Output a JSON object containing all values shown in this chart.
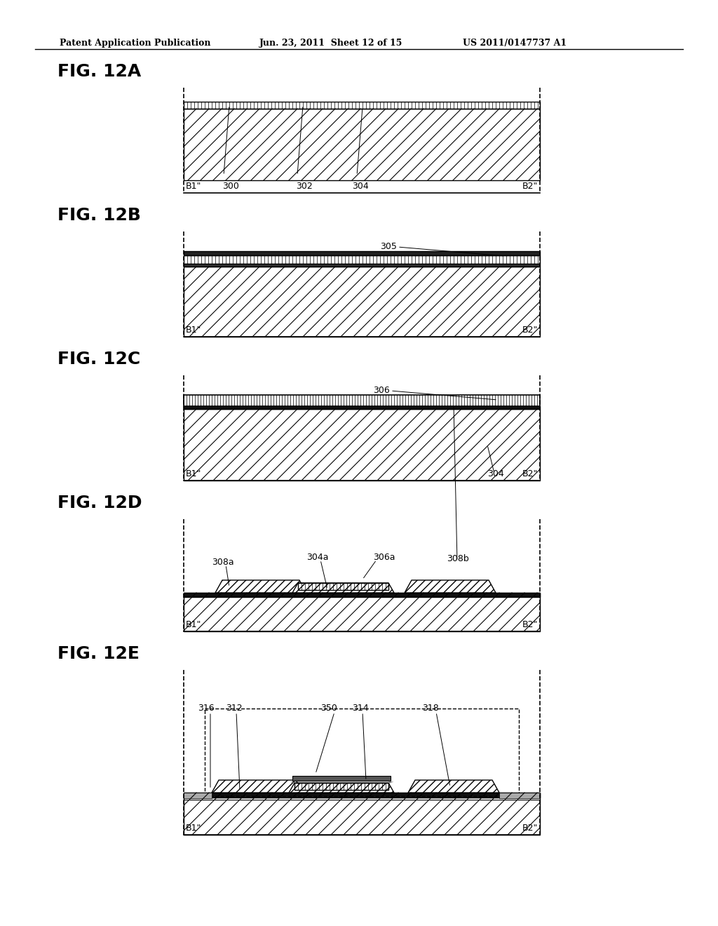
{
  "title_header": "Patent Application Publication",
  "date_header": "Jun. 23, 2011  Sheet 12 of 15",
  "patent_header": "US 2011/0147737 A1",
  "bg_color": "#ffffff",
  "line_color": "#000000",
  "hatch_color": "#000000",
  "fig_labels": [
    "FIG. 12A",
    "FIG. 12B",
    "FIG. 12C",
    "FIG. 12D",
    "FIG. 12E"
  ]
}
